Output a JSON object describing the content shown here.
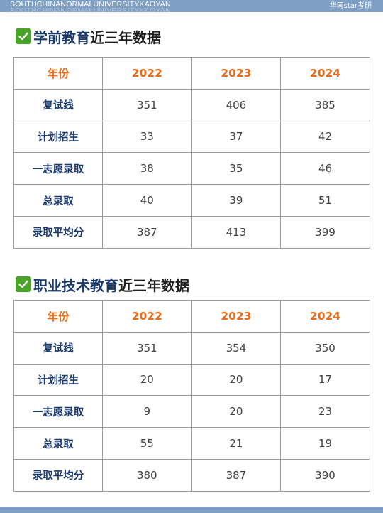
{
  "header": {
    "brand": "SOUTHCHINANORMALUNIVERSITYKAOYAN",
    "tag": "华南star考研"
  },
  "sections": [
    {
      "title_accent": "学前教育",
      "title_rest": "近三年数据",
      "columns": [
        "年份",
        "2022",
        "2023",
        "2024"
      ],
      "rows": [
        {
          "label": "复试线",
          "values": [
            "351",
            "406",
            "385"
          ]
        },
        {
          "label": "计划招生",
          "values": [
            "33",
            "37",
            "42"
          ]
        },
        {
          "label": "一志愿录取",
          "values": [
            "38",
            "35",
            "46"
          ]
        },
        {
          "label": "总录取",
          "values": [
            "40",
            "39",
            "51"
          ]
        },
        {
          "label": "录取平均分",
          "values": [
            "387",
            "413",
            "399"
          ]
        }
      ]
    },
    {
      "title_accent": "职业技术教育",
      "title_rest": "近三年数据",
      "columns": [
        "年份",
        "2022",
        "2023",
        "2024"
      ],
      "rows": [
        {
          "label": "复试线",
          "values": [
            "351",
            "354",
            "350"
          ]
        },
        {
          "label": "计划招生",
          "values": [
            "20",
            "20",
            "17"
          ]
        },
        {
          "label": "一志愿录取",
          "values": [
            "9",
            "20",
            "23"
          ]
        },
        {
          "label": "总录取",
          "values": [
            "55",
            "21",
            "19"
          ]
        },
        {
          "label": "录取平均分",
          "values": [
            "380",
            "387",
            "390"
          ]
        }
      ]
    }
  ],
  "colors": {
    "header_bg": "#7f9fc4",
    "column_header_text": "#ec6b17",
    "row_label_text": "#1b3a6b",
    "check_bg": "#4aa329"
  },
  "icons": [
    "check-mark-icon"
  ]
}
